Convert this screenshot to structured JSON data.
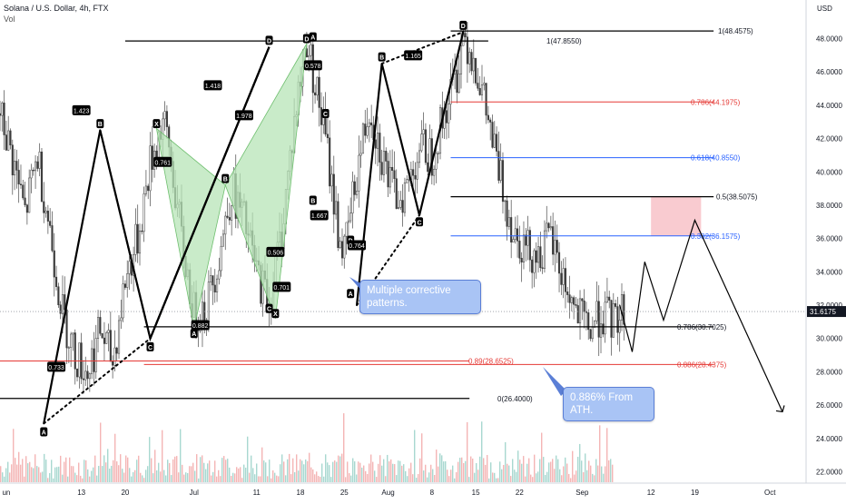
{
  "header": {
    "title": "Solana / U.S. Dollar, 4h, FTX",
    "subtitle": "Vol"
  },
  "axis": {
    "currency": "USD",
    "current_price": "31.6175"
  },
  "chart_data": {
    "type": "line",
    "title": "Solana / U.S. Dollar, 4h, FTX",
    "ylabel": "USD",
    "ylim": [
      21.0,
      50.5
    ],
    "xlim": [
      "2021-05-31",
      "2021-10-03"
    ],
    "y_ticks": [
      "22.0000",
      "24.0000",
      "26.0000",
      "28.0000",
      "30.0000",
      "32.0000",
      "34.0000",
      "36.0000",
      "38.0000",
      "40.0000",
      "42.0000",
      "44.0000",
      "46.0000",
      "48.0000"
    ],
    "x_ticks": [
      {
        "date": "2021-06-01",
        "label": "un"
      },
      {
        "date": "2021-06-13",
        "label": "13"
      },
      {
        "date": "2021-06-20",
        "label": "20"
      },
      {
        "date": "2021-07-01",
        "label": "Jul"
      },
      {
        "date": "2021-07-11",
        "label": "11"
      },
      {
        "date": "2021-07-18",
        "label": "18"
      },
      {
        "date": "2021-07-25",
        "label": "25"
      },
      {
        "date": "2021-08-01",
        "label": "Aug"
      },
      {
        "date": "2021-08-08",
        "label": "8"
      },
      {
        "date": "2021-08-15",
        "label": "15"
      },
      {
        "date": "2021-08-22",
        "label": "22"
      },
      {
        "date": "2021-09-01",
        "label": "Sep"
      },
      {
        "date": "2021-09-12",
        "label": "12"
      },
      {
        "date": "2021-09-19",
        "label": "19"
      },
      {
        "date": "2021-10-01",
        "label": "Oct"
      }
    ],
    "price_path": [
      {
        "x": "2021-05-31",
        "y": 43.5
      },
      {
        "x": "2021-06-02",
        "y": 40.8
      },
      {
        "x": "2021-06-04",
        "y": 37.5
      },
      {
        "x": "2021-06-06",
        "y": 41.0
      },
      {
        "x": "2021-06-08",
        "y": 36.5
      },
      {
        "x": "2021-06-10",
        "y": 31.5
      },
      {
        "x": "2021-06-12",
        "y": 29.0
      },
      {
        "x": "2021-06-14",
        "y": 28.0
      },
      {
        "x": "2021-06-16",
        "y": 30.5
      },
      {
        "x": "2021-06-18",
        "y": 28.6
      },
      {
        "x": "2021-06-20",
        "y": 33.5
      },
      {
        "x": "2021-06-22",
        "y": 36.0
      },
      {
        "x": "2021-06-24",
        "y": 40.5
      },
      {
        "x": "2021-06-26",
        "y": 43.0
      },
      {
        "x": "2021-06-27",
        "y": 41.5
      },
      {
        "x": "2021-06-29",
        "y": 36.0
      },
      {
        "x": "2021-07-01",
        "y": 31.5
      },
      {
        "x": "2021-07-03",
        "y": 32.0
      },
      {
        "x": "2021-07-05",
        "y": 35.0
      },
      {
        "x": "2021-07-07",
        "y": 39.0
      },
      {
        "x": "2021-07-09",
        "y": 37.0
      },
      {
        "x": "2021-07-11",
        "y": 34.0
      },
      {
        "x": "2021-07-13",
        "y": 32.2
      },
      {
        "x": "2021-07-15",
        "y": 36.5
      },
      {
        "x": "2021-07-17",
        "y": 43.0
      },
      {
        "x": "2021-07-19",
        "y": 48.0
      },
      {
        "x": "2021-07-20",
        "y": 46.0
      },
      {
        "x": "2021-07-22",
        "y": 42.0
      },
      {
        "x": "2021-07-24",
        "y": 36.5
      },
      {
        "x": "2021-07-25",
        "y": 35.0
      },
      {
        "x": "2021-07-27",
        "y": 40.0
      },
      {
        "x": "2021-07-29",
        "y": 44.0
      },
      {
        "x": "2021-07-31",
        "y": 41.0
      },
      {
        "x": "2021-08-02",
        "y": 38.5
      },
      {
        "x": "2021-08-04",
        "y": 39.0
      },
      {
        "x": "2021-08-06",
        "y": 41.5
      },
      {
        "x": "2021-08-08",
        "y": 41.0
      },
      {
        "x": "2021-08-10",
        "y": 43.5
      },
      {
        "x": "2021-08-12",
        "y": 46.0
      },
      {
        "x": "2021-08-13",
        "y": 48.4
      },
      {
        "x": "2021-08-15",
        "y": 46.5
      },
      {
        "x": "2021-08-17",
        "y": 43.0
      },
      {
        "x": "2021-08-19",
        "y": 39.5
      },
      {
        "x": "2021-08-21",
        "y": 36.5
      },
      {
        "x": "2021-08-23",
        "y": 35.5
      },
      {
        "x": "2021-08-25",
        "y": 35.0
      },
      {
        "x": "2021-08-27",
        "y": 36.0
      },
      {
        "x": "2021-08-29",
        "y": 33.5
      },
      {
        "x": "2021-08-31",
        "y": 31.5
      },
      {
        "x": "2021-09-02",
        "y": 30.5
      },
      {
        "x": "2021-09-04",
        "y": 31.5
      },
      {
        "x": "2021-09-06",
        "y": 31.0
      },
      {
        "x": "2021-09-08",
        "y": 32.0
      }
    ],
    "fib_levels": [
      {
        "label": "1(48.4575)",
        "value": 48.4575,
        "color": "#000000",
        "x1": "2021-08-11",
        "x2": "2021-09-22"
      },
      {
        "label": "1(47.8550)",
        "value": 47.855,
        "color": "#000000",
        "x1": "2021-06-20",
        "x2": "2021-08-17"
      },
      {
        "label": "0.786(44.1975)",
        "value": 44.1975,
        "color": "#e53935",
        "x1": "2021-08-11",
        "x2": "2021-09-22"
      },
      {
        "label": "0.618(40.8550)",
        "value": 40.855,
        "color": "#2962ff",
        "x1": "2021-08-11",
        "x2": "2021-09-22"
      },
      {
        "label": "0.5(38.5075)",
        "value": 38.5075,
        "color": "#000000",
        "x1": "2021-08-11",
        "x2": "2021-09-22"
      },
      {
        "label": "0.382(36.1575)",
        "value": 36.1575,
        "color": "#2962ff",
        "x1": "2021-08-11",
        "x2": "2021-09-22"
      },
      {
        "label": "0.786(30.7025)",
        "value": 30.7025,
        "color": "#000000",
        "x1": "2021-06-23",
        "x2": "2021-09-22"
      },
      {
        "label": "0.886(28.4375)",
        "value": 28.4375,
        "color": "#e53935",
        "x1": "2021-06-23",
        "x2": "2021-09-22"
      },
      {
        "label": "0.89(28.6525)",
        "value": 28.6525,
        "color": "#e53935",
        "x1": "2021-05-31",
        "x2": "2021-08-14"
      },
      {
        "label": "0(26.4000)",
        "value": 26.4,
        "color": "#000000",
        "x1": "2021-05-31",
        "x2": "2021-08-14"
      }
    ],
    "zone": {
      "x1": "2021-09-12",
      "x2": "2021-09-20",
      "y1": 36.1575,
      "y2": 38.5075,
      "color": "#f8c2c8"
    },
    "harmonic_legs": [
      [
        {
          "x": "2021-06-07",
          "y": 24.9
        },
        {
          "x": "2021-06-16",
          "y": 42.5
        },
        {
          "x": "2021-06-24",
          "y": 30.0
        },
        {
          "x": "2021-07-13",
          "y": 47.5
        }
      ],
      [
        {
          "x": "2021-06-24",
          "y": 30.0
        },
        {
          "x": "2021-07-13",
          "y": 47.5
        }
      ],
      [
        {
          "x": "2021-07-27",
          "y": 32.0
        },
        {
          "x": "2021-07-31",
          "y": 46.5
        },
        {
          "x": "2021-08-06",
          "y": 37.4
        },
        {
          "x": "2021-08-13",
          "y": 48.4
        }
      ]
    ],
    "dotted_legs": [
      [
        {
          "x": "2021-06-07",
          "y": 24.9
        },
        {
          "x": "2021-06-24",
          "y": 30.0
        }
      ],
      [
        {
          "x": "2021-06-24",
          "y": 30.0
        },
        {
          "x": "2021-07-13",
          "y": 47.5
        }
      ],
      [
        {
          "x": "2021-06-16",
          "y": 42.5
        },
        {
          "x": "2021-06-24",
          "y": 30.0
        }
      ],
      [
        {
          "x": "2021-07-27",
          "y": 32.0
        },
        {
          "x": "2021-08-06",
          "y": 37.4
        }
      ],
      [
        {
          "x": "2021-07-31",
          "y": 46.5
        },
        {
          "x": "2021-08-13",
          "y": 48.4
        }
      ]
    ],
    "butterfly_triangles": [
      [
        {
          "x": "2021-06-25",
          "y": 42.6
        },
        {
          "x": "2021-07-01",
          "y": 30.6
        },
        {
          "x": "2021-07-06",
          "y": 39.2
        }
      ],
      [
        {
          "x": "2021-07-06",
          "y": 39.2
        },
        {
          "x": "2021-07-14",
          "y": 31.2
        },
        {
          "x": "2021-07-19",
          "y": 47.7
        }
      ]
    ],
    "forecast_path": [
      {
        "x": "2021-09-07",
        "y": 32.0
      },
      {
        "x": "2021-09-09",
        "y": 29.2
      },
      {
        "x": "2021-09-11",
        "y": 34.6
      },
      {
        "x": "2021-09-14",
        "y": 31.1
      },
      {
        "x": "2021-09-19",
        "y": 37.1
      },
      {
        "x": "2021-10-03",
        "y": 25.6
      }
    ],
    "point_labels": [
      {
        "text": "A",
        "x": "2021-06-07",
        "y": 24.4,
        "boxed": true
      },
      {
        "text": "B",
        "x": "2021-06-16",
        "y": 42.9,
        "boxed": true
      },
      {
        "text": "C",
        "x": "2021-06-24",
        "y": 29.5,
        "boxed": true
      },
      {
        "text": "D",
        "x": "2021-07-13",
        "y": 47.9,
        "boxed": true
      },
      {
        "text": "X",
        "x": "2021-06-25",
        "y": 42.9,
        "boxed": true
      },
      {
        "text": "A",
        "x": "2021-07-01",
        "y": 30.3,
        "boxed": true
      },
      {
        "text": "B",
        "x": "2021-07-06",
        "y": 39.6,
        "boxed": true
      },
      {
        "text": "C",
        "x": "2021-07-13",
        "y": 31.8,
        "boxed": true
      },
      {
        "text": "X",
        "x": "2021-07-14",
        "y": 31.5,
        "boxed": true
      },
      {
        "text": "D",
        "x": "2021-07-19",
        "y": 48.0,
        "boxed": true
      },
      {
        "text": "A",
        "x": "2021-07-20",
        "y": 48.1,
        "boxed": true
      },
      {
        "text": "C",
        "x": "2021-07-22",
        "y": 43.5,
        "boxed": true
      },
      {
        "text": "B",
        "x": "2021-07-20",
        "y": 38.3,
        "boxed": true
      },
      {
        "text": "D",
        "x": "2021-07-26",
        "y": 35.9,
        "boxed": true
      },
      {
        "text": "A",
        "x": "2021-07-26",
        "y": 32.7,
        "boxed": true
      },
      {
        "text": "B",
        "x": "2021-07-31",
        "y": 46.9,
        "boxed": true
      },
      {
        "text": "C",
        "x": "2021-08-06",
        "y": 37.0,
        "boxed": true
      },
      {
        "text": "D",
        "x": "2021-08-13",
        "y": 48.8,
        "boxed": true
      }
    ],
    "ratio_labels": [
      {
        "text": "1.423",
        "x": "2021-06-13",
        "y": 43.7
      },
      {
        "text": "1.418",
        "x": "2021-07-04",
        "y": 45.2
      },
      {
        "text": "1.978",
        "x": "2021-07-09",
        "y": 43.4
      },
      {
        "text": "0.761",
        "x": "2021-06-26",
        "y": 40.6
      },
      {
        "text": "0.578",
        "x": "2021-07-20",
        "y": 46.4
      },
      {
        "text": "1.165",
        "x": "2021-08-05",
        "y": 47.0
      },
      {
        "text": "1.667",
        "x": "2021-07-21",
        "y": 37.4
      },
      {
        "text": "0.506",
        "x": "2021-07-14",
        "y": 35.2
      },
      {
        "text": "0.764",
        "x": "2021-07-27",
        "y": 35.6
      },
      {
        "text": "0.701",
        "x": "2021-07-15",
        "y": 33.1
      },
      {
        "text": "0.882",
        "x": "2021-07-02",
        "y": 30.8
      },
      {
        "text": "0.733",
        "x": "2021-06-09",
        "y": 28.3
      }
    ],
    "callouts": [
      {
        "id": "c1",
        "text": "Multiple corrective\npatterns."
      },
      {
        "id": "c2",
        "text": "0.886% From\nATH."
      }
    ]
  }
}
